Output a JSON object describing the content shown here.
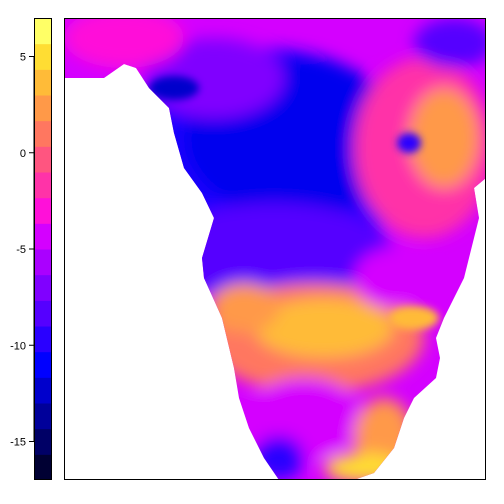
{
  "legend": {
    "ticks": [
      {
        "value": 5,
        "label": "5"
      },
      {
        "value": 0,
        "label": "0"
      },
      {
        "value": -5,
        "label": "-5"
      },
      {
        "value": -10,
        "label": "-10"
      },
      {
        "value": -15,
        "label": "-15"
      }
    ],
    "range": [
      -17,
      7
    ],
    "palette": [
      "#000033",
      "#000066",
      "#00009a",
      "#0000cc",
      "#0000ff",
      "#2a00ff",
      "#5500ff",
      "#8000ff",
      "#aa00ff",
      "#d400ff",
      "#ff10d9",
      "#ff33a8",
      "#ff5580",
      "#ff7760",
      "#ff9948",
      "#ffbb38",
      "#ffdd33",
      "#ffff66"
    ]
  },
  "map": {
    "ocean_color": "#ffffff",
    "frame_color": "#000000"
  }
}
